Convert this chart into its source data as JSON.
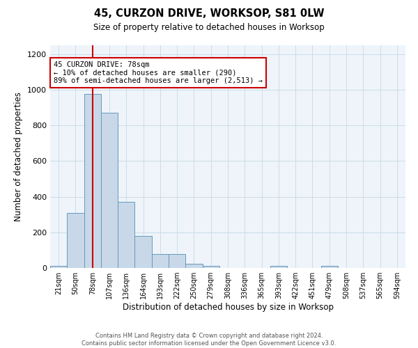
{
  "title": "45, CURZON DRIVE, WORKSOP, S81 0LW",
  "subtitle": "Size of property relative to detached houses in Worksop",
  "xlabel": "Distribution of detached houses by size in Worksop",
  "ylabel": "Number of detached properties",
  "bar_color": "#c8d8e8",
  "bar_edge_color": "#6699bb",
  "bin_labels": [
    "21sqm",
    "50sqm",
    "78sqm",
    "107sqm",
    "136sqm",
    "164sqm",
    "193sqm",
    "222sqm",
    "250sqm",
    "279sqm",
    "308sqm",
    "336sqm",
    "365sqm",
    "393sqm",
    "422sqm",
    "451sqm",
    "479sqm",
    "508sqm",
    "537sqm",
    "565sqm",
    "594sqm"
  ],
  "bar_heights": [
    12,
    310,
    975,
    870,
    370,
    180,
    80,
    80,
    25,
    13,
    0,
    0,
    0,
    11,
    0,
    0,
    13,
    0,
    0,
    0,
    0
  ],
  "red_line_index": 2,
  "annotation_text": "45 CURZON DRIVE: 78sqm\n← 10% of detached houses are smaller (290)\n89% of semi-detached houses are larger (2,513) →",
  "annotation_box_color": "white",
  "annotation_box_edge_color": "#cc0000",
  "red_line_color": "#cc0000",
  "grid_color": "#ccdde8",
  "background_color": "#eef4fa",
  "footer_text": "Contains HM Land Registry data © Crown copyright and database right 2024.\nContains public sector information licensed under the Open Government Licence v3.0.",
  "ylim": [
    0,
    1250
  ],
  "yticks": [
    0,
    200,
    400,
    600,
    800,
    1000,
    1200
  ]
}
